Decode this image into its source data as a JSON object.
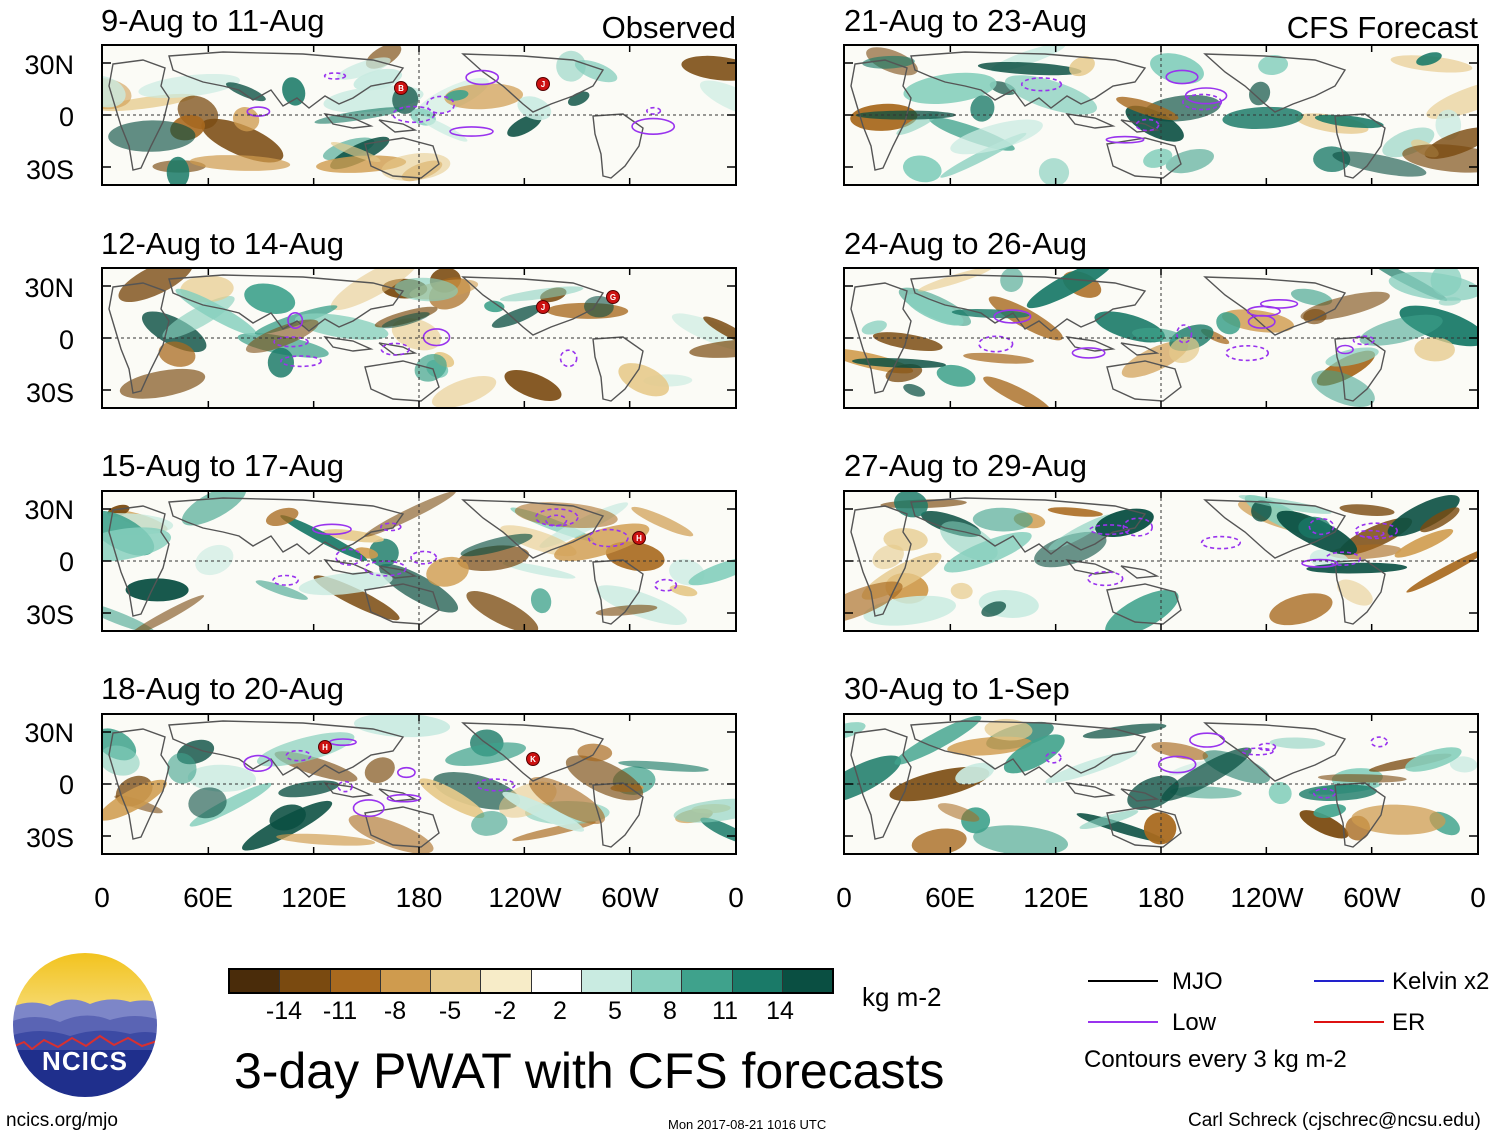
{
  "header": {
    "left_label": "Observed",
    "right_label": "CFS Forecast"
  },
  "panels": {
    "observed": [
      {
        "date_range": "9-Aug to 11-Aug",
        "storms": [
          "B",
          "J"
        ]
      },
      {
        "date_range": "12-Aug to 14-Aug",
        "storms": [
          "J",
          "G"
        ]
      },
      {
        "date_range": "15-Aug to 17-Aug",
        "storms": [
          "H"
        ]
      },
      {
        "date_range": "18-Aug to 20-Aug",
        "storms": [
          "H",
          "K"
        ]
      }
    ],
    "forecast": [
      {
        "date_range": "21-Aug to 23-Aug",
        "storms": []
      },
      {
        "date_range": "24-Aug to 26-Aug",
        "storms": []
      },
      {
        "date_range": "27-Aug to 29-Aug",
        "storms": []
      },
      {
        "date_range": "30-Aug to 1-Sep",
        "storms": []
      }
    ]
  },
  "axes": {
    "lat_labels": [
      "30N",
      "0",
      "30S"
    ],
    "lon_labels": [
      "0",
      "60E",
      "120E",
      "180",
      "120W",
      "60W",
      "0"
    ]
  },
  "colorbar": {
    "labels": [
      "-14",
      "-11",
      "-8",
      "-5",
      "-2",
      "2",
      "5",
      "8",
      "11",
      "14"
    ],
    "colors": [
      "#4a2c0a",
      "#7a4a10",
      "#a8691e",
      "#cf9b4e",
      "#e6c98a",
      "#f7ecc8",
      "#ffffff",
      "#c9ebe1",
      "#86cfbd",
      "#3fa28c",
      "#1a7a68",
      "#0a4f42"
    ],
    "units": "kg m-2"
  },
  "legend": {
    "items": [
      {
        "label": "MJO",
        "color": "#000000"
      },
      {
        "label": "Kelvin x2",
        "color": "#2222cc"
      },
      {
        "label": "Low",
        "color": "#9933ee"
      },
      {
        "label": "ER",
        "color": "#dd1111"
      }
    ],
    "contour_note": "Contours every 3 kg m-2"
  },
  "title": "3-day PWAT with CFS forecasts",
  "logo": {
    "text": "NCICS"
  },
  "footer": {
    "url": "ncics.org/mjo",
    "timestamp": "Mon 2017-08-21 1016 UTC",
    "author": "Carl Schreck (cjschrec@ncsu.edu)"
  }
}
